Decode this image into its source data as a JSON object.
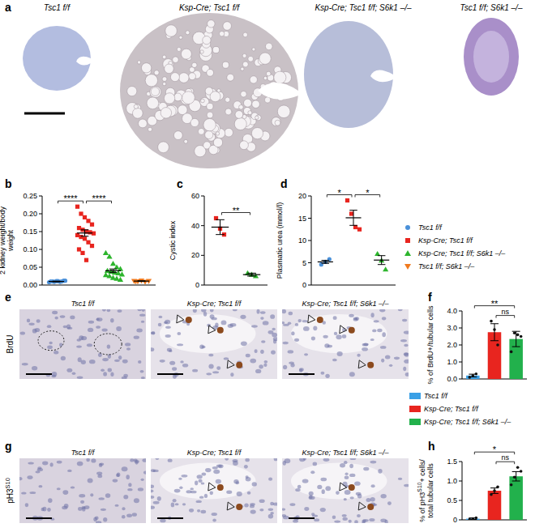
{
  "chart_data": [
    {
      "panel": "b",
      "type": "scatter",
      "ylabel": [
        "2 kidney weight/body",
        "weight"
      ],
      "ylim": [
        0,
        0.25
      ],
      "yticks": [
        {
          "value": 0,
          "label": "0.00"
        },
        0.05,
        {
          "value": 0.1,
          "label": "0.10"
        },
        0.15,
        {
          "value": 0.2,
          "label": "0.20"
        },
        0.25
      ],
      "tick_labels": "y",
      "legend": "right",
      "series": [
        {
          "name": "Tsc1 f/f",
          "color": "#4a90d9",
          "marker": "circle",
          "values": [
            0.008,
            0.01,
            0.011,
            0.009,
            0.012,
            0.01,
            0.009,
            0.011,
            0.01,
            0.012
          ],
          "mean": 0.01,
          "sem": 0.001
        },
        {
          "name": "Ksp-Cre; Tsc1 f/f",
          "color": "#e8251f",
          "marker": "square",
          "values": [
            0.22,
            0.2,
            0.19,
            0.18,
            0.17,
            0.16,
            0.155,
            0.15,
            0.148,
            0.145,
            0.14,
            0.135,
            0.13,
            0.12,
            0.11,
            0.1,
            0.09,
            0.07
          ],
          "mean": 0.146,
          "sem": 0.009
        },
        {
          "name": "Ksp-Cre; Tsc1 f/f; S6k1 –/–",
          "color": "#2db52d",
          "marker": "triangle",
          "values": [
            0.09,
            0.08,
            0.06,
            0.05,
            0.045,
            0.04,
            0.038,
            0.035,
            0.033,
            0.03,
            0.028,
            0.025,
            0.02,
            0.018,
            0.015
          ],
          "mean": 0.04,
          "sem": 0.005
        },
        {
          "name": "Tsc1 f/f; S6k1 –/–",
          "color": "#f07a1e",
          "marker": "triangle-down",
          "values": [
            0.011,
            0.01,
            0.012,
            0.009,
            0.011,
            0.01
          ],
          "mean": 0.011,
          "sem": 0.001
        }
      ],
      "annotations": [
        {
          "text": "****",
          "from": 0,
          "to": 1
        },
        {
          "text": "****",
          "from": 1,
          "to": 2
        }
      ]
    },
    {
      "panel": "c",
      "type": "scatter",
      "ylabel": [
        "Cystic index"
      ],
      "ylim": [
        0,
        60
      ],
      "yticks": [
        0,
        20,
        40,
        60
      ],
      "tick_labels": "y",
      "series": [
        {
          "color": "#e8251f",
          "marker": "square",
          "values": [
            45,
            38,
            34
          ],
          "mean": 39,
          "sem": 5
        },
        {
          "color": "#2db52d",
          "marker": "triangle",
          "values": [
            8,
            7,
            6
          ],
          "mean": 7,
          "sem": 1
        }
      ],
      "annotations": [
        {
          "text": "**",
          "from": 0,
          "to": 1
        }
      ]
    },
    {
      "panel": "d",
      "type": "scatter",
      "ylabel": [
        "Plasmatic urea (mmol/l)"
      ],
      "ylim": [
        0,
        20
      ],
      "yticks": [
        0,
        5,
        10,
        15,
        20
      ],
      "tick_labels": "y",
      "series": [
        {
          "color": "#4a90d9",
          "marker": "circle",
          "values": [
            4.6,
            5.2,
            5.8
          ],
          "mean": 5.2,
          "sem": 0.35
        },
        {
          "color": "#e8251f",
          "marker": "square",
          "values": [
            19,
            16,
            13,
            12.5
          ],
          "mean": 15.1,
          "sem": 1.7
        },
        {
          "color": "#2db52d",
          "marker": "triangle",
          "values": [
            7,
            5.5,
            3.5
          ],
          "mean": 5.6,
          "sem": 1
        }
      ],
      "annotations": [
        {
          "text": "*",
          "from": 0,
          "to": 1
        },
        {
          "text": "*",
          "from": 1,
          "to": 2
        }
      ]
    },
    {
      "panel": "f",
      "type": "bar",
      "ylabel": [
        "% of BrdU+/tubular cells"
      ],
      "ylim": [
        0,
        4
      ],
      "yticks": [
        {
          "value": 0,
          "label": "0.0"
        },
        {
          "value": 1,
          "label": "1.0"
        },
        {
          "value": 2,
          "label": "2.0"
        },
        {
          "value": 3,
          "label": "3.0"
        },
        {
          "value": 4,
          "label": "4.0"
        }
      ],
      "tick_labels": "y",
      "legend": "right",
      "series": [
        {
          "name": "Tsc1 f/f",
          "color": "#3aa0e6",
          "values": [
            0.2
          ],
          "errors": [
            0.08
          ],
          "points": [
            0.1,
            0.2,
            0.3
          ]
        },
        {
          "name": "Ksp-Cre; Tsc1 f/f",
          "color": "#e8251f",
          "values": [
            2.75
          ],
          "errors": [
            0.5
          ],
          "points": [
            3.4,
            2.9,
            2.0
          ]
        },
        {
          "name": "Ksp-Cre; Tsc1 f/f; S6k1 –/–",
          "color": "#22b14c",
          "values": [
            2.35
          ],
          "errors": [
            0.45
          ],
          "points": [
            1.6,
            2.7,
            2.6,
            2.5
          ]
        }
      ],
      "annotations": [
        {
          "text": "**",
          "from": 0,
          "to": 2
        },
        {
          "text": "ns",
          "from": 1,
          "to": 2
        }
      ]
    },
    {
      "panel": "h",
      "type": "bar",
      "ylabel": [
        {
          "text": "% of pH3",
          "sup": "S10",
          "tail": "+ cells/"
        },
        "total tubular cells"
      ],
      "ylim": [
        0,
        1.5
      ],
      "yticks": [
        0,
        0.5,
        {
          "value": 1,
          "label": "1.0"
        },
        1.5
      ],
      "tick_labels": "y",
      "series": [
        {
          "color": "#3aa0e6",
          "values": [
            0.03
          ],
          "errors": [
            0.02
          ],
          "points": [
            0.01,
            0.03,
            0.05
          ]
        },
        {
          "color": "#e8251f",
          "values": [
            0.75
          ],
          "errors": [
            0.07
          ],
          "points": [
            0.65,
            0.75,
            0.85
          ]
        },
        {
          "color": "#22b14c",
          "values": [
            1.12
          ],
          "errors": [
            0.12
          ],
          "points": [
            0.9,
            1.1,
            1.35,
            1.25
          ]
        }
      ],
      "annotations": [
        {
          "text": "*",
          "from": 0,
          "to": 2
        },
        {
          "text": "ns",
          "from": 1,
          "to": 2
        }
      ]
    }
  ],
  "images": [
    {
      "panel": "a",
      "titles": [
        "Tsc1 f/f",
        "Ksp-Cre; Tsc1 f/f",
        "Ksp-Cre; Tsc1 f/f; S6k1 –/–",
        "Tsc1 f/f; S6k1 –/–"
      ]
    },
    {
      "panel": "e",
      "row_label": "BrdU",
      "titles": [
        "Tsc1 f/f",
        "Ksp-Cre; Tsc1 f/f",
        "Ksp-Cre; Tsc1 f/f; S6k1 –/–"
      ]
    },
    {
      "panel": "g",
      "row_label": {
        "text": "pH3",
        "sup": "S10"
      },
      "titles": [
        "Tsc1 f/f",
        "Ksp-Cre; Tsc1 f/f",
        "Ksp-Cre; Tsc1 f/f; S6k1 –/–"
      ]
    }
  ]
}
